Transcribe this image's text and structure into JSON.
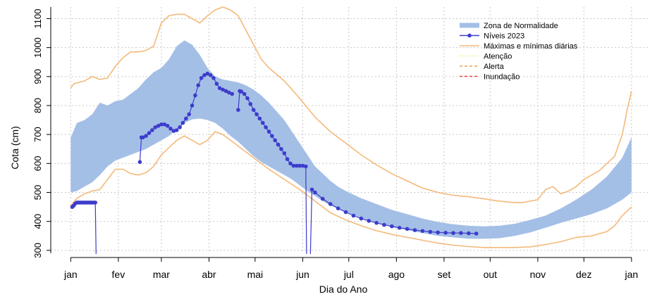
{
  "chart_data": {
    "type": "line",
    "xlabel": "Dia do Ano",
    "ylabel": "Cota (cm)",
    "ylim": [
      290,
      1140
    ],
    "y_ticks": [
      300,
      400,
      500,
      600,
      700,
      800,
      900,
      1000,
      1100
    ],
    "x_ticks": [
      {
        "label": "jan",
        "day": 1
      },
      {
        "label": "fev",
        "day": 32
      },
      {
        "label": "mar",
        "day": 60
      },
      {
        "label": "abr",
        "day": 91
      },
      {
        "label": "mai",
        "day": 121
      },
      {
        "label": "jun",
        "day": 152
      },
      {
        "label": "jul",
        "day": 182
      },
      {
        "label": "ago",
        "day": 213
      },
      {
        "label": "set",
        "day": 244
      },
      {
        "label": "out",
        "day": 274
      },
      {
        "label": "nov",
        "day": 305
      },
      {
        "label": "dez",
        "day": 335
      },
      {
        "label": "jan",
        "day": 366
      }
    ],
    "grid": true,
    "legend_position": "top-right",
    "colors": {
      "normal_band": "#a4bfe6",
      "levels": "#3c3ccc",
      "extremes": "#f5b97a",
      "atencao": "#f0e68c",
      "alerta": "#f0a050",
      "inundacao": "#f04040"
    },
    "legend": [
      {
        "name": "Zona de Normalidade",
        "style": "band",
        "color": "#a4bfe6"
      },
      {
        "name": "Níveis 2023",
        "style": "line-point",
        "color": "#3c3ccc"
      },
      {
        "name": "Máximas e mínimas diárias",
        "style": "line",
        "color": "#f5b97a"
      },
      {
        "name": "Atenção",
        "style": "dotted",
        "color": "#f0e68c"
      },
      {
        "name": "Alerta",
        "style": "dashed",
        "color": "#f0a050"
      },
      {
        "name": "Inundação",
        "style": "dashed",
        "color": "#f04040"
      }
    ],
    "series": [
      {
        "name": "Zona de Normalidade",
        "kind": "band",
        "x": [
          1,
          5,
          10,
          15,
          20,
          25,
          30,
          35,
          40,
          45,
          50,
          55,
          60,
          65,
          70,
          75,
          80,
          85,
          90,
          95,
          100,
          105,
          110,
          115,
          120,
          125,
          130,
          135,
          140,
          145,
          150,
          155,
          160,
          165,
          170,
          175,
          180,
          190,
          200,
          210,
          220,
          230,
          240,
          250,
          260,
          270,
          280,
          290,
          300,
          310,
          320,
          330,
          340,
          350,
          360,
          366
        ],
        "upper": [
          690,
          740,
          750,
          770,
          810,
          800,
          815,
          820,
          840,
          860,
          890,
          915,
          930,
          960,
          1005,
          1025,
          1010,
          975,
          930,
          900,
          890,
          885,
          880,
          870,
          855,
          835,
          810,
          780,
          750,
          710,
          670,
          630,
          590,
          565,
          540,
          520,
          505,
          480,
          460,
          440,
          425,
          410,
          398,
          390,
          385,
          383,
          385,
          392,
          405,
          420,
          445,
          475,
          510,
          555,
          620,
          690
        ],
        "lower": [
          500,
          505,
          520,
          535,
          560,
          590,
          610,
          620,
          630,
          640,
          650,
          665,
          680,
          695,
          720,
          740,
          752,
          755,
          750,
          740,
          720,
          695,
          675,
          650,
          625,
          605,
          590,
          575,
          560,
          545,
          525,
          505,
          488,
          470,
          455,
          445,
          432,
          412,
          395,
          380,
          370,
          360,
          350,
          345,
          340,
          340,
          342,
          350,
          362,
          378,
          395,
          410,
          425,
          445,
          475,
          500
        ]
      },
      {
        "name": "Máximas diárias",
        "kind": "line",
        "x": [
          1,
          3,
          10,
          15,
          20,
          25,
          30,
          35,
          40,
          45,
          50,
          55,
          60,
          65,
          70,
          75,
          80,
          85,
          90,
          95,
          100,
          105,
          110,
          115,
          120,
          125,
          130,
          140,
          150,
          160,
          170,
          180,
          190,
          200,
          210,
          220,
          230,
          240,
          250,
          260,
          270,
          280,
          290,
          295,
          300,
          305,
          310,
          315,
          320,
          325,
          330,
          335,
          340,
          345,
          350,
          355,
          360,
          363,
          366
        ],
        "values": [
          860,
          875,
          885,
          900,
          890,
          895,
          935,
          965,
          985,
          985,
          990,
          1005,
          1085,
          1110,
          1115,
          1115,
          1100,
          1085,
          1110,
          1130,
          1140,
          1130,
          1110,
          1060,
          1010,
          960,
          930,
          885,
          825,
          760,
          710,
          670,
          630,
          595,
          565,
          540,
          515,
          500,
          490,
          485,
          478,
          470,
          465,
          465,
          470,
          475,
          510,
          520,
          495,
          505,
          520,
          545,
          560,
          575,
          600,
          625,
          700,
          780,
          850
        ]
      },
      {
        "name": "Mínimas diárias",
        "kind": "line",
        "x": [
          1,
          5,
          10,
          15,
          20,
          25,
          30,
          35,
          40,
          45,
          50,
          55,
          60,
          65,
          70,
          75,
          80,
          85,
          90,
          95,
          100,
          105,
          110,
          115,
          120,
          125,
          130,
          140,
          150,
          160,
          170,
          180,
          190,
          200,
          210,
          220,
          230,
          240,
          250,
          260,
          270,
          280,
          290,
          300,
          310,
          320,
          330,
          340,
          350,
          355,
          360,
          366
        ],
        "values": [
          455,
          480,
          495,
          505,
          510,
          545,
          580,
          580,
          565,
          560,
          568,
          590,
          630,
          655,
          680,
          695,
          680,
          665,
          680,
          710,
          700,
          680,
          660,
          640,
          620,
          600,
          580,
          545,
          510,
          470,
          430,
          405,
          385,
          368,
          355,
          345,
          335,
          325,
          318,
          313,
          310,
          310,
          310,
          312,
          320,
          330,
          345,
          350,
          365,
          385,
          420,
          450
        ]
      },
      {
        "name": "Níveis 2023",
        "kind": "points",
        "segments": [
          {
            "x": [
              2,
              3,
              4,
              5,
              6,
              7,
              8,
              9,
              10,
              11,
              12,
              13,
              14,
              15,
              16,
              17
            ],
            "values": [
              450,
              455,
              462,
              465,
              465,
              465,
              465,
              465,
              465,
              465,
              465,
              465,
              465,
              465,
              465,
              465
            ]
          },
          {
            "x": [
              46,
              47,
              48,
              50,
              52,
              54,
              56,
              58,
              60,
              62,
              64,
              66,
              68,
              70,
              72,
              74,
              76,
              78,
              80,
              82,
              84,
              86,
              88,
              90,
              92,
              94,
              96,
              98,
              100,
              102,
              104,
              106
            ],
            "values": [
              605,
              690,
              690,
              695,
              705,
              715,
              725,
              730,
              735,
              735,
              730,
              720,
              712,
              715,
              725,
              740,
              755,
              770,
              800,
              835,
              870,
              895,
              905,
              910,
              905,
              895,
              875,
              860,
              855,
              850,
              845,
              840
            ]
          },
          {
            "x": [
              110,
              111,
              112,
              114,
              116,
              118,
              120,
              122,
              124,
              126,
              128,
              130,
              132,
              134,
              136,
              138,
              140,
              142,
              144,
              146,
              148,
              150,
              152,
              154
            ],
            "values": [
              785,
              850,
              848,
              840,
              825,
              805,
              785,
              770,
              755,
              740,
              725,
              710,
              695,
              680,
              665,
              650,
              635,
              615,
              600,
              592,
              592,
              592,
              592,
              590
            ]
          },
          {
            "x": [
              158,
              160,
              165,
              170,
              175,
              180,
              185,
              190,
              195,
              200,
              205,
              210,
              215,
              220,
              225,
              230,
              235,
              240,
              245,
              250,
              255,
              260,
              265
            ],
            "values": [
              510,
              500,
              478,
              460,
              445,
              432,
              420,
              410,
              402,
              395,
              388,
              383,
              378,
              374,
              370,
              367,
              364,
              362,
              361,
              360,
              360,
              359,
              358
            ]
          }
        ]
      }
    ]
  }
}
